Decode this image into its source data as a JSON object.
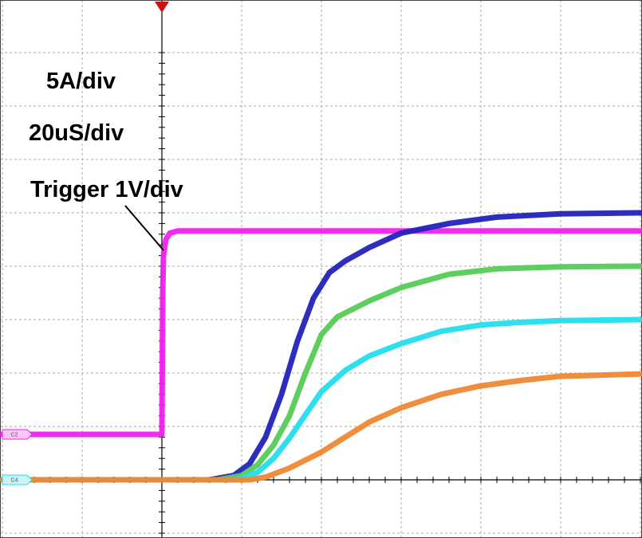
{
  "chart_data": {
    "type": "line",
    "title": "",
    "xlabel": "",
    "ylabel": "",
    "annotations": [
      "5A/div",
      "20uS/div",
      "Trigger 1V/div"
    ],
    "scale": {
      "current_per_div": "5A/div",
      "time_per_div": "20uS/div",
      "trigger_scale": "1V/div"
    },
    "x_unit": "div",
    "y_unit": "div",
    "xlim": [
      -2,
      6
    ],
    "ylim": [
      -1,
      8
    ],
    "grid": true,
    "channel_markers": [
      "C2",
      "C4"
    ],
    "trigger_position_div": 0,
    "series": [
      {
        "color": "#ee22ee",
        "x": [
          -2,
          0,
          0.01,
          0.02,
          0.05,
          0.1,
          0.2,
          0.3,
          6
        ],
        "y": [
          0.85,
          0.85,
          3.5,
          4.2,
          4.5,
          4.62,
          4.66,
          4.66,
          4.66
        ]
      },
      {
        "color": "#2222bb",
        "x": [
          -2,
          0.6,
          0.9,
          1.1,
          1.3,
          1.5,
          1.7,
          1.9,
          2.1,
          2.3,
          2.6,
          3.0,
          3.6,
          4.2,
          5.0,
          6.0
        ],
        "y": [
          0,
          0,
          0.08,
          0.3,
          0.8,
          1.6,
          2.6,
          3.4,
          3.88,
          4.1,
          4.35,
          4.62,
          4.8,
          4.92,
          4.98,
          5.0
        ]
      },
      {
        "color": "#55cc55",
        "x": [
          -2,
          0.7,
          1.0,
          1.2,
          1.4,
          1.6,
          1.8,
          2.0,
          2.2,
          2.6,
          3.0,
          3.6,
          4.2,
          5.0,
          6.0
        ],
        "y": [
          0,
          0,
          0.08,
          0.28,
          0.65,
          1.2,
          2.0,
          2.72,
          3.05,
          3.35,
          3.6,
          3.85,
          3.95,
          3.99,
          4.0
        ]
      },
      {
        "color": "#22ddee",
        "x": [
          -2,
          0.8,
          1.0,
          1.2,
          1.4,
          1.6,
          1.8,
          2.0,
          2.3,
          2.6,
          3.0,
          3.5,
          4.0,
          4.5,
          5.0,
          6.0
        ],
        "y": [
          0,
          0,
          0.03,
          0.14,
          0.4,
          0.78,
          1.22,
          1.65,
          2.05,
          2.32,
          2.55,
          2.78,
          2.9,
          2.95,
          2.98,
          3.0
        ]
      },
      {
        "color": "#ee8833",
        "x": [
          -2,
          1.1,
          1.3,
          1.6,
          2.0,
          2.3,
          2.6,
          3.0,
          3.5,
          4.0,
          4.5,
          5.0,
          6.0
        ],
        "y": [
          0,
          0,
          0.05,
          0.22,
          0.52,
          0.8,
          1.08,
          1.35,
          1.6,
          1.76,
          1.86,
          1.94,
          1.98
        ]
      }
    ]
  }
}
